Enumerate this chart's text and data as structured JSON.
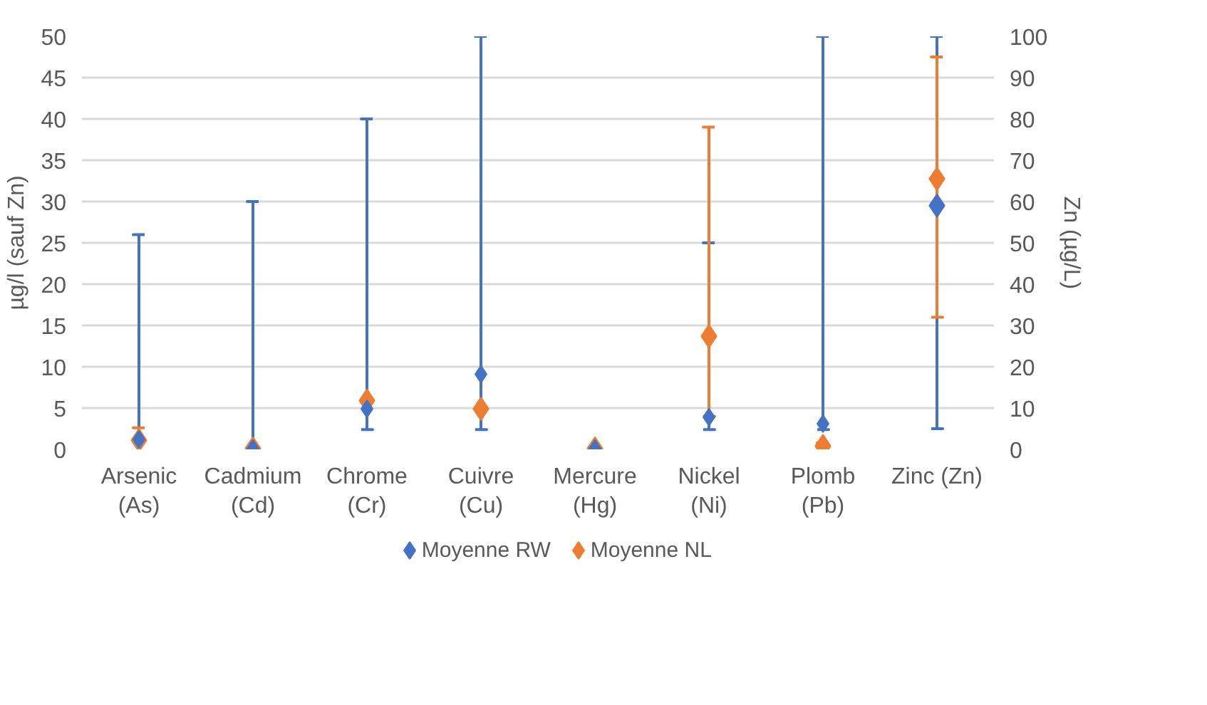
{
  "chart_data": {
    "type": "scatter",
    "categories": [
      "Arsenic\n(As)",
      "Cadmium\n(Cd)",
      "Chrome\n(Cr)",
      "Cuivre\n(Cu)",
      "Mercure\n(Hg)",
      "Nickel\n(Ni)",
      "Plomb\n(Pb)",
      "Zinc (Zn)"
    ],
    "ylabel": "µg/l (sauf Zn)",
    "y2label": "Zn (µg/L)",
    "ylim": [
      0,
      50
    ],
    "yticks": [
      0,
      5,
      10,
      15,
      20,
      25,
      30,
      35,
      40,
      45,
      50
    ],
    "y2lim": [
      0,
      100
    ],
    "y2ticks": [
      0,
      10,
      20,
      30,
      40,
      50,
      60,
      70,
      80,
      90,
      100
    ],
    "grid": "y",
    "legend": "bottom",
    "marker": "diamond",
    "series": [
      {
        "name": "Moyenne RW",
        "color": "#4472c4",
        "values": [
          1.2,
          0.1,
          4.9,
          9.1,
          0.1,
          3.9,
          3.1,
          null
        ],
        "errors": [
          [
            1.2,
            26
          ],
          [
            0.1,
            30
          ],
          [
            2.4,
            40
          ],
          [
            2.4,
            50
          ],
          null,
          [
            2.4,
            25
          ],
          [
            2.4,
            50
          ],
          null
        ]
      },
      {
        "name": "Moyenne NL",
        "color": "#ed7d31",
        "values": [
          1.1,
          0.1,
          5.9,
          4.9,
          0.1,
          13.7,
          0.4,
          null
        ],
        "errors": [
          [
            1.1,
            2.6
          ],
          null,
          null,
          null,
          null,
          [
            4,
            39
          ],
          [
            0.3,
            0.8
          ],
          null
        ]
      },
      {
        "color": "#4472c4",
        "axis": "y2",
        "values": [
          null,
          null,
          null,
          null,
          null,
          null,
          null,
          59
        ],
        "errors": [
          null,
          null,
          null,
          null,
          null,
          null,
          null,
          [
            5,
            100
          ]
        ]
      },
      {
        "color": "#ed7d31",
        "axis": "y2",
        "values": [
          null,
          null,
          null,
          null,
          null,
          null,
          null,
          65.5
        ],
        "errors": [
          null,
          null,
          null,
          null,
          null,
          null,
          null,
          [
            32,
            95
          ]
        ]
      }
    ]
  }
}
